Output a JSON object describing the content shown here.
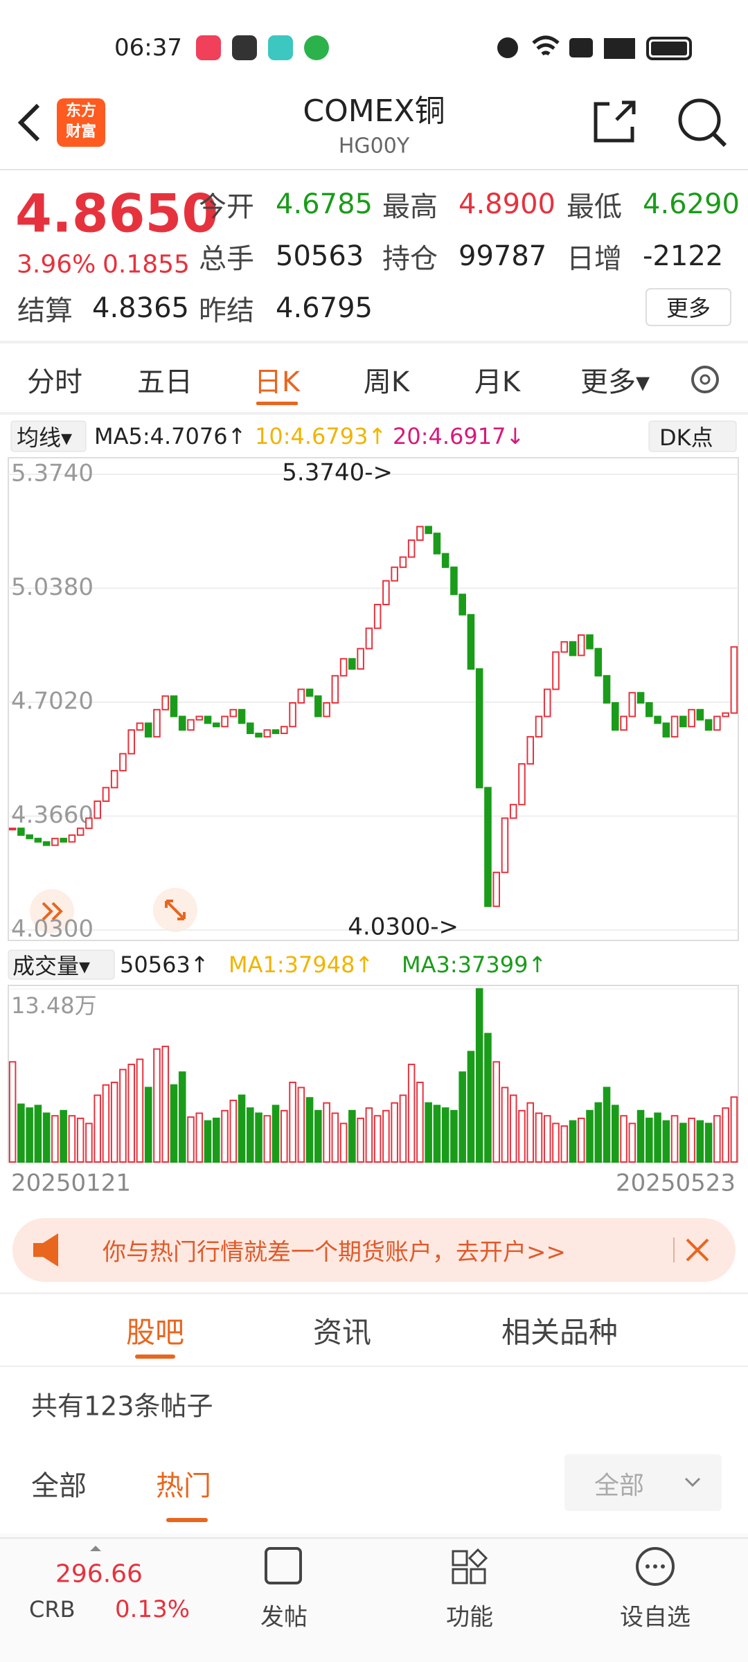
{
  "status_bar": {
    "time": "06:37"
  },
  "header": {
    "logo": [
      "东方",
      "财富"
    ],
    "title": "COMEX铜",
    "subtitle": "HG00Y"
  },
  "quote": {
    "price": "4.8650",
    "change_pct": "3.96%",
    "change": "0.1855",
    "fields": [
      {
        "label": "今开",
        "value": "4.6785"
      },
      {
        "label": "最高",
        "value": "4.8900"
      },
      {
        "label": "最低",
        "value": "4.6290"
      },
      {
        "label": "总手",
        "value": "50563"
      },
      {
        "label": "持仓",
        "value": "99787"
      },
      {
        "label": "日增",
        "value": "-2122"
      },
      {
        "label": "结算",
        "value": "4.8365"
      },
      {
        "label": "昨结",
        "value": "4.6795"
      }
    ],
    "more": "更多"
  },
  "period_tabs": [
    "分时",
    "五日",
    "日K",
    "周K",
    "月K",
    "更多▾"
  ],
  "ma_legend": {
    "selector": "均线▾",
    "ma5": "MA5:4.7076↑",
    "ma10": "10:4.6793↑",
    "ma20": "20:4.6917↓",
    "dk": "DK点"
  },
  "volume_legend": {
    "selector": "成交量▾",
    "volume": "50563↑",
    "ma1": "MA1:37948↑",
    "ma3": "MA3:37399↑"
  },
  "chart_data": [
    {
      "type": "candlestick",
      "values": [
        4.33,
        4.31,
        4.3,
        4.29,
        4.28,
        4.3,
        4.29,
        4.31,
        4.33,
        4.36,
        4.41,
        4.45,
        4.5,
        4.55,
        4.62,
        4.64,
        4.6,
        4.68,
        4.72,
        4.66,
        4.62,
        4.65,
        4.66,
        4.64,
        4.63,
        4.66,
        4.68,
        4.64,
        4.61,
        4.6,
        4.62,
        4.61,
        4.63,
        4.7,
        4.74,
        4.72,
        4.66,
        4.7,
        4.78,
        4.83,
        4.8,
        4.86,
        4.92,
        4.99,
        5.06,
        5.1,
        5.13,
        5.18,
        5.22,
        5.2,
        5.14,
        5.1,
        5.02,
        4.96,
        4.8,
        4.45,
        4.1,
        4.2,
        4.36,
        4.4,
        4.52,
        4.6,
        4.66,
        4.74,
        4.85,
        4.88,
        4.84,
        4.9,
        4.86,
        4.78,
        4.7,
        4.62,
        4.66,
        4.73,
        4.7,
        4.66,
        4.64,
        4.6,
        4.66,
        4.63,
        4.68,
        4.65,
        4.62,
        4.66,
        4.67,
        4.865
      ],
      "ylim": [
        4.03,
        5.374
      ],
      "yticks": [
        {
          "value": 5.374,
          "label": "5.3740"
        },
        {
          "value": 5.038,
          "label": "5.0380"
        },
        {
          "value": 4.702,
          "label": "4.7020"
        },
        {
          "value": 4.366,
          "label": "4.3660"
        },
        {
          "value": 4.03,
          "label": "4.0300"
        }
      ],
      "annotations": [
        "5.3740->",
        "4.0300->"
      ],
      "up_color": "#e6323d",
      "down_color": "#1a9c1a",
      "grid": true
    },
    {
      "type": "bar",
      "categories": [
        "20250121",
        null,
        null,
        null,
        null,
        null,
        null,
        null,
        null,
        null,
        null,
        null,
        null,
        null,
        null,
        null,
        null,
        null,
        null,
        null,
        null,
        null,
        null,
        null,
        null,
        null,
        null,
        null,
        null,
        null,
        null,
        null,
        null,
        null,
        null,
        null,
        null,
        null,
        null,
        null,
        null,
        null,
        null,
        null,
        null,
        null,
        null,
        null,
        null,
        null,
        null,
        null,
        null,
        null,
        null,
        null,
        null,
        null,
        null,
        null,
        null,
        null,
        null,
        null,
        null,
        null,
        null,
        null,
        null,
        null,
        null,
        null,
        null,
        null,
        null,
        null,
        null,
        null,
        null,
        null,
        null,
        null,
        null,
        null,
        null,
        "20250523"
      ],
      "values": [
        78000,
        45000,
        42000,
        44000,
        38000,
        36000,
        40000,
        36000,
        34000,
        30000,
        52000,
        60000,
        62000,
        72000,
        76000,
        80000,
        58000,
        88000,
        90000,
        60000,
        70000,
        35000,
        38000,
        32000,
        34000,
        40000,
        48000,
        52000,
        42000,
        38000,
        36000,
        44000,
        40000,
        62000,
        58000,
        50000,
        40000,
        46000,
        38000,
        30000,
        40000,
        34000,
        42000,
        36000,
        40000,
        46000,
        52000,
        76000,
        62000,
        46000,
        44000,
        42000,
        40000,
        70000,
        86000,
        134800,
        100000,
        78000,
        58000,
        52000,
        40000,
        46000,
        38000,
        36000,
        30000,
        28000,
        32000,
        34000,
        40000,
        46000,
        58000,
        44000,
        36000,
        30000,
        40000,
        34000,
        38000,
        32000,
        36000,
        30000,
        34000,
        32000,
        30000,
        36000,
        42000,
        50563
      ],
      "ylim": [
        0,
        134800
      ],
      "yticks": [
        {
          "value": 134800,
          "label": "13.48万"
        }
      ]
    }
  ],
  "banner": {
    "text": "你与热门行情就差一个期货账户，去开户>>"
  },
  "section_tabs": [
    "股吧",
    "资讯",
    "相关品种"
  ],
  "post_count": "共有123条帖子",
  "filters": [
    "全部",
    "热门"
  ],
  "dropdown": "全部",
  "bottom_bar": {
    "index_value": "296.66",
    "index_name": "CRB",
    "index_change": "0.13%",
    "items": [
      "发帖",
      "功能",
      "设自选"
    ]
  }
}
